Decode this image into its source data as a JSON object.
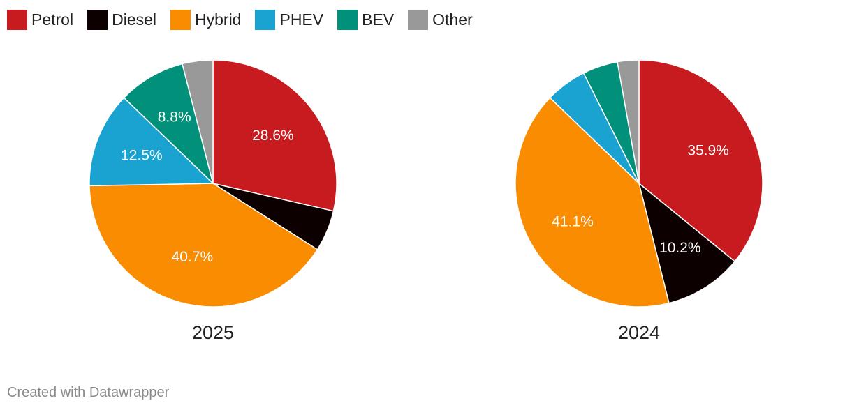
{
  "legend": {
    "items": [
      {
        "label": "Petrol",
        "color": "#c81b1f"
      },
      {
        "label": "Diesel",
        "color": "#0d0001"
      },
      {
        "label": "Hybrid",
        "color": "#f98c00"
      },
      {
        "label": "PHEV",
        "color": "#1aa2d0"
      },
      {
        "label": "BEV",
        "color": "#01917a"
      },
      {
        "label": "Other",
        "color": "#999999"
      }
    ]
  },
  "chart_data": [
    {
      "type": "pie",
      "title": "2025",
      "categories": [
        "Petrol",
        "Diesel",
        "Hybrid",
        "PHEV",
        "BEV",
        "Other"
      ],
      "values": [
        28.6,
        5.4,
        40.7,
        12.5,
        8.8,
        4.0
      ],
      "labels": [
        "28.6%",
        "",
        "40.7%",
        "12.5%",
        "8.8%",
        ""
      ],
      "colors": [
        "#c81b1f",
        "#0d0001",
        "#f98c00",
        "#1aa2d0",
        "#01917a",
        "#999999"
      ]
    },
    {
      "type": "pie",
      "title": "2024",
      "categories": [
        "Petrol",
        "Diesel",
        "Hybrid",
        "PHEV",
        "BEV",
        "Other"
      ],
      "values": [
        35.9,
        10.2,
        41.1,
        5.4,
        4.6,
        2.8
      ],
      "labels": [
        "35.9%",
        "10.2%",
        "41.1%",
        "",
        "",
        ""
      ],
      "colors": [
        "#c81b1f",
        "#0d0001",
        "#f98c00",
        "#1aa2d0",
        "#01917a",
        "#999999"
      ]
    }
  ],
  "footer": {
    "credit": "Created with Datawrapper"
  }
}
